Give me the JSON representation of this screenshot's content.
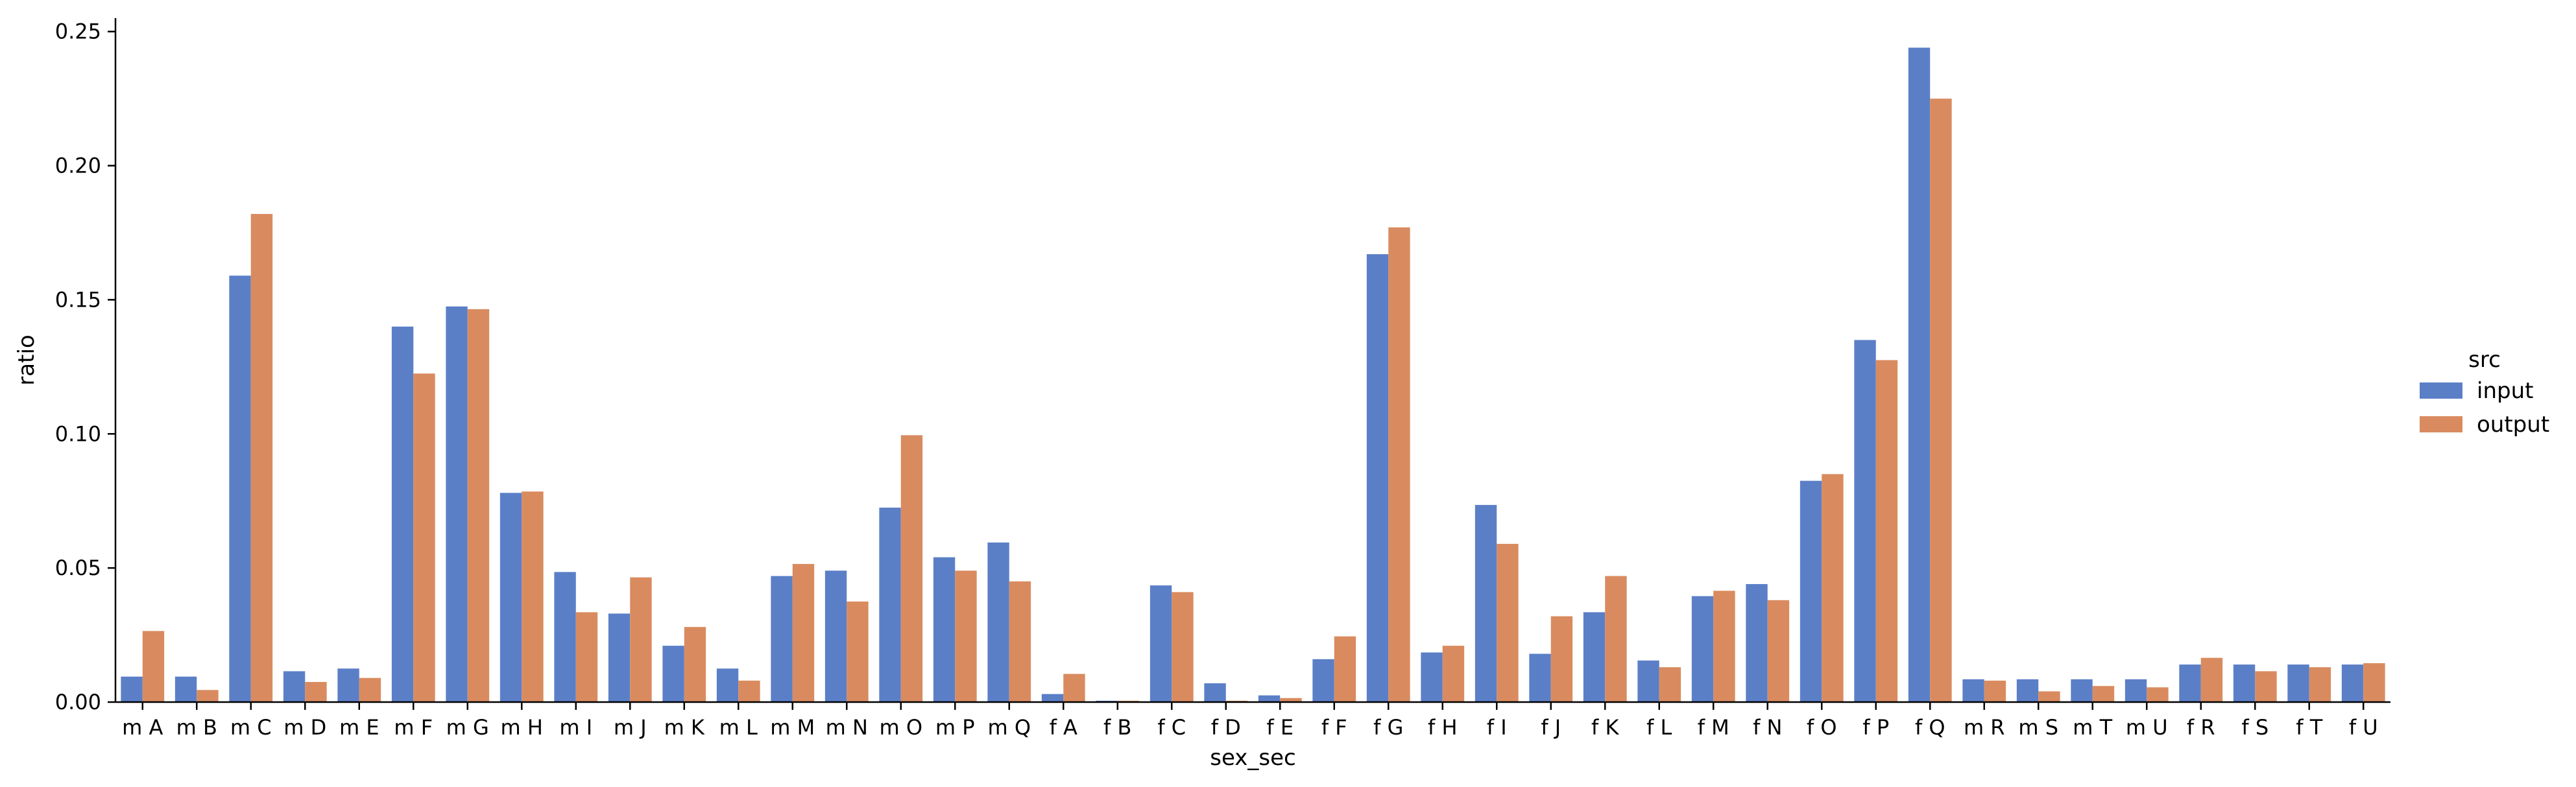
{
  "chart_data": {
    "type": "bar",
    "xlabel": "sex_sec",
    "ylabel": "ratio",
    "ylim": [
      0,
      0.255
    ],
    "yticks": [
      "0.00",
      "0.05",
      "0.10",
      "0.15",
      "0.20",
      "0.25"
    ],
    "ytick_values": [
      0,
      0.05,
      0.1,
      0.15,
      0.2,
      0.25
    ],
    "categories": [
      "m A",
      "m B",
      "m C",
      "m D",
      "m E",
      "m F",
      "m G",
      "m H",
      "m I",
      "m J",
      "m K",
      "m L",
      "m M",
      "m N",
      "m O",
      "m P",
      "m Q",
      "f A",
      "f B",
      "f C",
      "f D",
      "f E",
      "f F",
      "f G",
      "f H",
      "f I",
      "f J",
      "f K",
      "f L",
      "f M",
      "f N",
      "f O",
      "f P",
      "f Q",
      "m R",
      "m S",
      "m T",
      "m U",
      "f R",
      "f S",
      "f T",
      "f U"
    ],
    "legend_title": "src",
    "legend_position": "right",
    "series": [
      {
        "name": "input",
        "color": "#5b7fc7",
        "values": [
          0.0095,
          0.0095,
          0.159,
          0.0115,
          0.0125,
          0.14,
          0.1475,
          0.078,
          0.0485,
          0.033,
          0.021,
          0.0125,
          0.047,
          0.049,
          0.0725,
          0.054,
          0.0595,
          0.003,
          0.0005,
          0.0435,
          0.007,
          0.0025,
          0.016,
          0.167,
          0.0185,
          0.0735,
          0.018,
          0.0335,
          0.0155,
          0.0395,
          0.044,
          0.0825,
          0.135,
          0.244,
          0.0085,
          0.0085,
          0.0085,
          0.0085,
          0.014,
          0.014,
          0.014,
          0.014
        ]
      },
      {
        "name": "output",
        "color": "#d98b5f",
        "values": [
          0.0265,
          0.0045,
          0.182,
          0.0075,
          0.009,
          0.1225,
          0.1465,
          0.0785,
          0.0335,
          0.0465,
          0.028,
          0.008,
          0.0515,
          0.0375,
          0.0995,
          0.049,
          0.045,
          0.0105,
          0.0005,
          0.041,
          0.0005,
          0.0015,
          0.0245,
          0.177,
          0.021,
          0.059,
          0.032,
          0.047,
          0.013,
          0.0415,
          0.038,
          0.085,
          0.1275,
          0.225,
          0.008,
          0.004,
          0.006,
          0.0055,
          0.0165,
          0.0115,
          0.013,
          0.0145
        ]
      }
    ]
  }
}
